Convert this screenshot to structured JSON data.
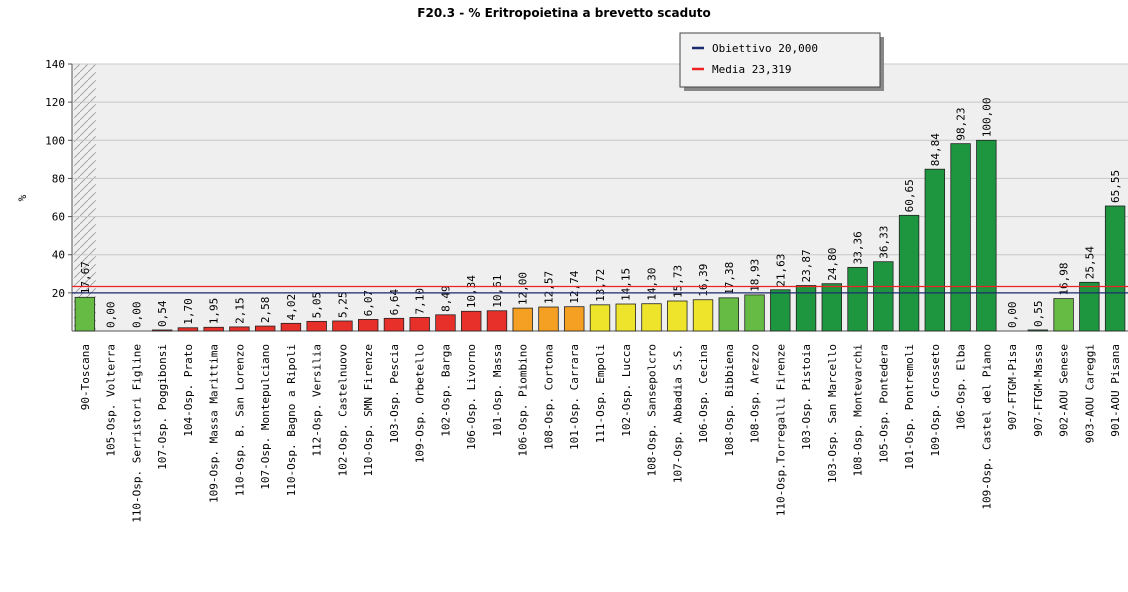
{
  "chart_data": {
    "type": "bar",
    "title": "F20.3 - % Eritropoietina a brevetto scaduto",
    "y_label": "%",
    "categories": [
      "90-Toscana",
      "105-Osp. Volterra",
      "110-Osp. Serristori Figline",
      "107-Osp. Poggibonsi",
      "104-Osp. Prato",
      "109-Osp. Massa Marittima",
      "110-Osp. B. San Lorenzo",
      "107-Osp. Montepulciano",
      "110-Osp. Bagno a Ripoli",
      "112-Osp. Versilia",
      "102-Osp. Castelnuovo",
      "110-Osp. SMN Firenze",
      "103-Osp. Pescia",
      "109-Osp. Orbetello",
      "102-Osp. Barga",
      "106-Osp. Livorno",
      "101-Osp. Massa",
      "106-Osp. Piombino",
      "108-Osp. Cortona",
      "101-Osp. Carrara",
      "111-Osp. Empoli",
      "102-Osp. Lucca",
      "108-Osp. Sansepolcro",
      "107-Osp. Abbadia S.S.",
      "106-Osp. Cecina",
      "108-Osp. Bibbiena",
      "108-Osp. Arezzo",
      "110-Osp.Torregalli Firenze",
      "103-Osp. Pistoia",
      "103-Osp. San Marcello",
      "108-Osp. Montevarchi",
      "105-Osp. Pontedera",
      "101-Osp. Pontremoli",
      "109-Osp. Grosseto",
      "106-Osp. Elba",
      "109-Osp. Castel del Piano",
      "907-FTGM-Pisa",
      "907-FTGM-Massa",
      "902-AOU Senese",
      "903-AOU Careggi",
      "901-AOU Pisana"
    ],
    "values": [
      17.67,
      0,
      0,
      0.54,
      1.7,
      1.95,
      2.15,
      2.58,
      4.02,
      5.05,
      5.25,
      6.07,
      6.64,
      7.1,
      8.49,
      10.34,
      10.61,
      12,
      12.57,
      12.74,
      13.72,
      14.15,
      14.3,
      15.73,
      16.39,
      17.38,
      18.93,
      21.63,
      23.87,
      24.8,
      33.36,
      36.33,
      60.65,
      84.84,
      98.23,
      100,
      0,
      0.55,
      16.98,
      25.54,
      65.55
    ],
    "value_labels": [
      "17,67",
      "0,00",
      "0,00",
      "0,54",
      "1,70",
      "1,95",
      "2,15",
      "2,58",
      "4,02",
      "5,05",
      "5,25",
      "6,07",
      "6,64",
      "7,10",
      "8,49",
      "10,34",
      "10,61",
      "12,00",
      "12,57",
      "12,74",
      "13,72",
      "14,15",
      "14,30",
      "15,73",
      "16,39",
      "17,38",
      "18,93",
      "21,63",
      "23,87",
      "24,80",
      "33,36",
      "36,33",
      "60,65",
      "84,84",
      "98,23",
      "100,00",
      "0,00",
      "0,55",
      "16,98",
      "25,54",
      "65,55"
    ],
    "colors": [
      "#66bb44",
      "#e8302a",
      "#e8302a",
      "#e8302a",
      "#e8302a",
      "#e8302a",
      "#e8302a",
      "#e8302a",
      "#e8302a",
      "#e8302a",
      "#e8302a",
      "#e8302a",
      "#e8302a",
      "#e8302a",
      "#e8302a",
      "#e8302a",
      "#e8302a",
      "#f5a023",
      "#f5a023",
      "#f5a023",
      "#eee42c",
      "#eee42c",
      "#eee42c",
      "#eee42c",
      "#eee42c",
      "#66bb44",
      "#66bb44",
      "#1e9640",
      "#1e9640",
      "#1e9640",
      "#1e9640",
      "#1e9640",
      "#1e9640",
      "#1e9640",
      "#1e9640",
      "#1e9640",
      "#1e9640",
      "#1e9640",
      "#66bb44",
      "#1e9640",
      "#1e9640"
    ],
    "reference_lines": [
      {
        "name": "Obiettivo 20,000",
        "value": 20,
        "color": "#1c2a6e"
      },
      {
        "name": "Media 23,319",
        "value": 23.319,
        "color": "#ee2222"
      }
    ],
    "ylim": [
      0,
      140
    ],
    "yticks": [
      20,
      40,
      60,
      80,
      100,
      120,
      140
    ],
    "grid": true,
    "legend": "top-right"
  }
}
